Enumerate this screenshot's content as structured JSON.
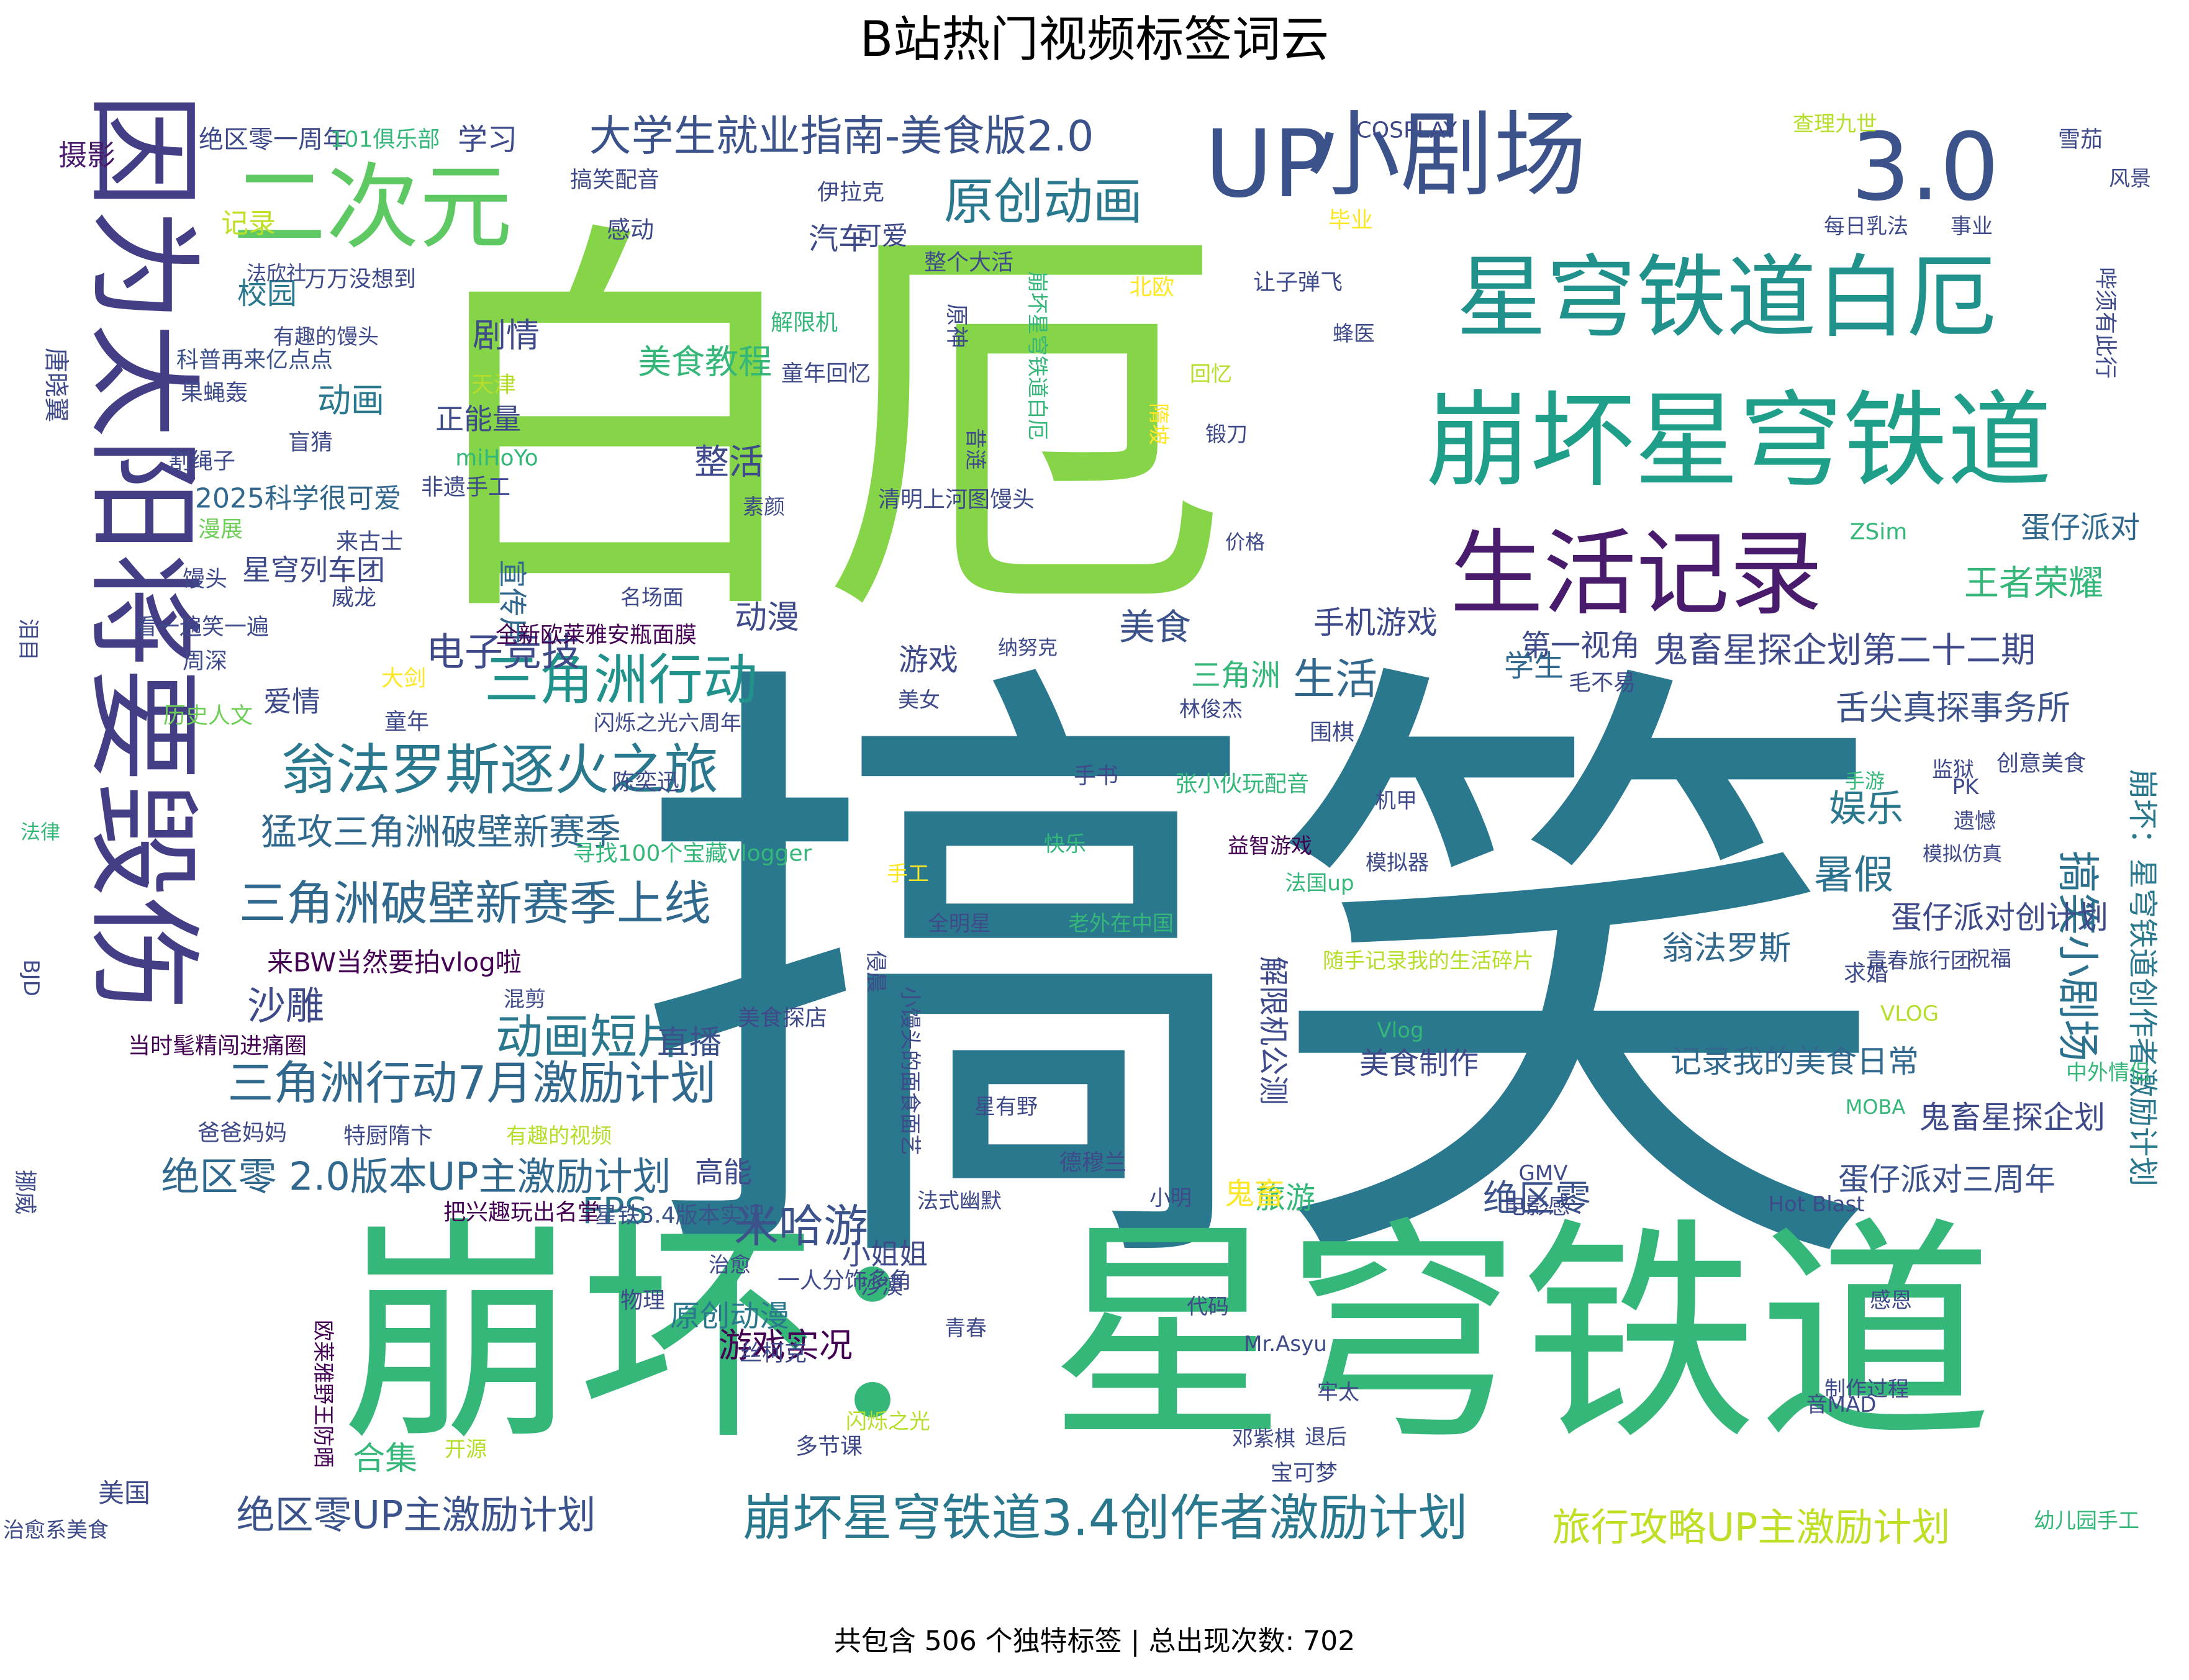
{
  "chart_data": {
    "type": "wordcloud",
    "title": "B站热门视频标签词云",
    "footer": "共包含 506 个独特标签 | 总出现次数: 702",
    "unique_tags": 506,
    "total_occurrences": 702,
    "colormap": "viridis",
    "words": [
      {
        "text": "搞笑",
        "color": "#2a788e"
      },
      {
        "text": "白厄",
        "color": "#86d549"
      },
      {
        "text": "崩坏：星穹铁道",
        "color": "#35b779"
      },
      {
        "text": "因为太阳将要毁伤",
        "color": "#433e85"
      },
      {
        "text": "崩坏星穹铁道",
        "color": "#1f9e89"
      },
      {
        "text": "星穹铁道白厄",
        "color": "#21918c"
      },
      {
        "text": "小剧场",
        "color": "#3b528b"
      },
      {
        "text": "UP",
        "color": "#3b528b"
      },
      {
        "text": "3.0",
        "color": "#3b528b"
      },
      {
        "text": "二次元",
        "color": "#5ec962"
      },
      {
        "text": "生活记录",
        "color": "#481b6d"
      },
      {
        "text": "三角洲行动",
        "color": "#21918c"
      },
      {
        "text": "翁法罗斯逐火之旅",
        "color": "#2a788e"
      },
      {
        "text": "三角洲破壁新赛季上线",
        "color": "#31688e"
      },
      {
        "text": "三角洲行动7月激励计划",
        "color": "#31688e"
      },
      {
        "text": "崩坏星穹铁道3.4创作者激励计划",
        "color": "#2a788e"
      },
      {
        "text": "大学生就业指南-美食版2.0",
        "color": "#3b528b"
      },
      {
        "text": "原创动画",
        "color": "#2a788e"
      },
      {
        "text": "绝区零 2.0版本UP主激励计划",
        "color": "#31688e"
      },
      {
        "text": "动画短片",
        "color": "#2a788e"
      },
      {
        "text": "猛攻三角洲破壁新赛季",
        "color": "#31688e"
      },
      {
        "text": "米哈游",
        "color": "#3b528b"
      },
      {
        "text": "电子竞技",
        "color": "#3e4a89"
      },
      {
        "text": "搞笑小剧场",
        "color": "#2c728e"
      },
      {
        "text": "旅行攻略UP主激励计划",
        "color": "#bddf26"
      },
      {
        "text": "绝区零UP主激励计划",
        "color": "#3b528b"
      },
      {
        "text": "鬼畜星探企划第二十二期",
        "color": "#3e4a89"
      },
      {
        "text": "舌尖真探事务所",
        "color": "#3b528b"
      },
      {
        "text": "王者荣耀",
        "color": "#35b779"
      },
      {
        "text": "蛋仔派对",
        "color": "#31688e"
      },
      {
        "text": "暑假",
        "color": "#2c728e"
      },
      {
        "text": "娱乐",
        "color": "#2a788e"
      },
      {
        "text": "蛋仔派对创计划",
        "color": "#3e4a89"
      },
      {
        "text": "翁法罗斯",
        "color": "#31688e"
      },
      {
        "text": "记录我的美食日常",
        "color": "#31688e"
      },
      {
        "text": "鬼畜星探企划",
        "color": "#3e4a89"
      },
      {
        "text": "蛋仔派对三周年",
        "color": "#3b528b"
      },
      {
        "text": "崩坏：星穹铁道创作者激励计划",
        "color": "#2a788e"
      },
      {
        "text": "绝区零",
        "color": "#3b528b"
      },
      {
        "text": "生活",
        "color": "#31688e"
      },
      {
        "text": "美食",
        "color": "#3b528b"
      },
      {
        "text": "动漫",
        "color": "#3e4a89"
      },
      {
        "text": "手机游戏",
        "color": "#3e4a89"
      },
      {
        "text": "游戏",
        "color": "#3e4a89"
      },
      {
        "text": "三角洲",
        "color": "#35b779"
      },
      {
        "text": "第一视角",
        "color": "#3e4a89"
      },
      {
        "text": "学生",
        "color": "#31688e"
      },
      {
        "text": "剧情",
        "color": "#3e4a89"
      },
      {
        "text": "动画",
        "color": "#2a788e"
      },
      {
        "text": "正能量",
        "color": "#3e4a89"
      },
      {
        "text": "整活",
        "color": "#3e4a89"
      },
      {
        "text": "美食教程",
        "color": "#35b779"
      },
      {
        "text": "学习",
        "color": "#3e4a89"
      },
      {
        "text": "汽车",
        "color": "#3e4a89"
      },
      {
        "text": "校园",
        "color": "#2a788e"
      },
      {
        "text": "沙雕",
        "color": "#3e4a89"
      },
      {
        "text": "直播",
        "color": "#3b528b"
      },
      {
        "text": "FPS",
        "color": "#2a788e"
      },
      {
        "text": "合集",
        "color": "#35b779"
      },
      {
        "text": "美国",
        "color": "#3e4a89"
      },
      {
        "text": "高能",
        "color": "#3e4a89"
      },
      {
        "text": "小姐姐",
        "color": "#3e4a89"
      },
      {
        "text": "游戏实况",
        "color": "#440154"
      },
      {
        "text": "原创动漫",
        "color": "#2a788e"
      },
      {
        "text": "旅游",
        "color": "#35b779"
      },
      {
        "text": "鬼畜",
        "color": "#fde725"
      },
      {
        "text": "美食制作",
        "color": "#3e4a89"
      },
      {
        "text": "解限机公测",
        "color": "#3e4a89"
      },
      {
        "text": "来BW当然要拍vlog啦",
        "color": "#440154"
      },
      {
        "text": "爱情",
        "color": "#3e4a89"
      },
      {
        "text": "宣传片",
        "color": "#31688e"
      },
      {
        "text": "星穹列车团",
        "color": "#3e4a89"
      },
      {
        "text": "2025科学很可爱",
        "color": "#31688e"
      },
      {
        "text": "摄影",
        "color": "#481b6d"
      },
      {
        "text": "绝区零一周年",
        "color": "#3e4a89"
      },
      {
        "text": "101俱乐部",
        "color": "#35b779"
      },
      {
        "text": "搞笑配音",
        "color": "#3e4a89"
      },
      {
        "text": "记录",
        "color": "#bddf26"
      },
      {
        "text": "可爱",
        "color": "#3e4a89"
      },
      {
        "text": "伊拉克",
        "color": "#3e4a89"
      },
      {
        "text": "感动",
        "color": "#3e4a89"
      },
      {
        "text": "法欣社",
        "color": "#3e4a89"
      },
      {
        "text": "万万没想到",
        "color": "#3e4a89"
      },
      {
        "text": "唐晓翼",
        "color": "#3e4a89"
      },
      {
        "text": "科普再来亿点点",
        "color": "#3b528b"
      },
      {
        "text": "有趣的馒头",
        "color": "#3e4a89"
      },
      {
        "text": "天津",
        "color": "#b5de2b"
      },
      {
        "text": "果蝇轰",
        "color": "#3e4a89"
      },
      {
        "text": "盲猜",
        "color": "#3e4a89"
      },
      {
        "text": "割绳子",
        "color": "#3e4a89"
      },
      {
        "text": "miHoYo",
        "color": "#35b779"
      },
      {
        "text": "非遗手工",
        "color": "#3e4a89"
      },
      {
        "text": "漫展",
        "color": "#6ece58"
      },
      {
        "text": "来古士",
        "color": "#3e4a89"
      },
      {
        "text": "馒头",
        "color": "#3e4a89"
      },
      {
        "text": "威龙",
        "color": "#3e4a89"
      },
      {
        "text": "看一遍笑一遍",
        "color": "#3e4a89"
      },
      {
        "text": "周深",
        "color": "#3e4a89"
      },
      {
        "text": "泪目",
        "color": "#3e4a89"
      },
      {
        "text": "大剑",
        "color": "#fde725"
      },
      {
        "text": "历史人文",
        "color": "#6ece58"
      },
      {
        "text": "童年",
        "color": "#3e4a89"
      },
      {
        "text": "闪烁之光六周年",
        "color": "#3e4a89"
      },
      {
        "text": "全新欧莱雅安瓶面膜",
        "color": "#440154"
      },
      {
        "text": "名场面",
        "color": "#3e4a89"
      },
      {
        "text": "法律",
        "color": "#35b779"
      },
      {
        "text": "BJD",
        "color": "#3e4a89"
      },
      {
        "text": "寻找100个宝藏vlogger",
        "color": "#35b779"
      },
      {
        "text": "陈奕迅",
        "color": "#3e4a89"
      },
      {
        "text": "混剪",
        "color": "#3e4a89"
      },
      {
        "text": "当时髦精闯进痛圈",
        "color": "#440154"
      },
      {
        "text": "爸爸妈妈",
        "color": "#3e4a89"
      },
      {
        "text": "特厨隋卞",
        "color": "#3e4a89"
      },
      {
        "text": "有趣的视频",
        "color": "#b5de2b"
      },
      {
        "text": "美食探店",
        "color": "#3e4a89"
      },
      {
        "text": "挪威",
        "color": "#3e4a89"
      },
      {
        "text": "把兴趣玩出名堂",
        "color": "#440154"
      },
      {
        "text": "星铁3.4版本实况",
        "color": "#3b528b"
      },
      {
        "text": "治愈",
        "color": "#3e4a89"
      },
      {
        "text": "一人分饰多角",
        "color": "#3e4a89"
      },
      {
        "text": "物理",
        "color": "#3e4a89"
      },
      {
        "text": "沙漠",
        "color": "#3e4a89"
      },
      {
        "text": "丝柯克",
        "color": "#3e4a89"
      },
      {
        "text": "欧莱雅野王防晒",
        "color": "#440154"
      },
      {
        "text": "开源",
        "color": "#b5de2b"
      },
      {
        "text": "多节课",
        "color": "#3e4a89"
      },
      {
        "text": "治愈系美食",
        "color": "#3e4a89"
      },
      {
        "text": "闪烁之光",
        "color": "#b5de2b"
      },
      {
        "text": "COSPLAY",
        "color": "#3e4a89"
      },
      {
        "text": "查理九世",
        "color": "#b5de2b"
      },
      {
        "text": "雪茄",
        "color": "#3e4a89"
      },
      {
        "text": "风景",
        "color": "#3e4a89"
      },
      {
        "text": "毕业",
        "color": "#fde725"
      },
      {
        "text": "每日乳法",
        "color": "#3e4a89"
      },
      {
        "text": "事业",
        "color": "#3e4a89"
      },
      {
        "text": "整个大活",
        "color": "#3e4a89"
      },
      {
        "text": "北欧",
        "color": "#fde725"
      },
      {
        "text": "让子弹飞",
        "color": "#3e4a89"
      },
      {
        "text": "哔须有此行",
        "color": "#3e4a89"
      },
      {
        "text": "解限机",
        "color": "#35b779"
      },
      {
        "text": "童年回忆",
        "color": "#3e4a89"
      },
      {
        "text": "原神",
        "color": "#3e4a89"
      },
      {
        "text": "崩坏星穹铁道白厄",
        "color": "#35b779"
      },
      {
        "text": "蜂医",
        "color": "#3e4a89"
      },
      {
        "text": "昔涟",
        "color": "#3e4a89"
      },
      {
        "text": "回忆",
        "color": "#b5de2b"
      },
      {
        "text": "隋坡",
        "color": "#fde725"
      },
      {
        "text": "锻刀",
        "color": "#3e4a89"
      },
      {
        "text": "素颜",
        "color": "#3e4a89"
      },
      {
        "text": "清明上河图馒头",
        "color": "#3e4a89"
      },
      {
        "text": "价格",
        "color": "#3e4a89"
      },
      {
        "text": "ZSim",
        "color": "#35b779"
      },
      {
        "text": "纳努克",
        "color": "#3e4a89"
      },
      {
        "text": "美女",
        "color": "#3e4a89"
      },
      {
        "text": "林俊杰",
        "color": "#3e4a89"
      },
      {
        "text": "围棋",
        "color": "#3e4a89"
      },
      {
        "text": "毛不易",
        "color": "#3e4a89"
      },
      {
        "text": "手游",
        "color": "#35b779"
      },
      {
        "text": "创意美食",
        "color": "#3e4a89"
      },
      {
        "text": "手书",
        "color": "#3e4a89"
      },
      {
        "text": "张小伙玩配音",
        "color": "#35b779"
      },
      {
        "text": "监狱",
        "color": "#3e4a89"
      },
      {
        "text": "PK",
        "color": "#3e4a89"
      },
      {
        "text": "机甲",
        "color": "#3e4a89"
      },
      {
        "text": "遗憾",
        "color": "#3e4a89"
      },
      {
        "text": "快乐",
        "color": "#35b779"
      },
      {
        "text": "益智游戏",
        "color": "#440154"
      },
      {
        "text": "模拟器",
        "color": "#3e4a89"
      },
      {
        "text": "模拟仿真",
        "color": "#3e4a89"
      },
      {
        "text": "手工",
        "color": "#fde725"
      },
      {
        "text": "法国up",
        "color": "#35b779"
      },
      {
        "text": "全明星",
        "color": "#3e4a89"
      },
      {
        "text": "老外在中国",
        "color": "#35b779"
      },
      {
        "text": "随手记录我的生活碎片",
        "color": "#b5de2b"
      },
      {
        "text": "青春旅行团",
        "color": "#3e4a89"
      },
      {
        "text": "祝福",
        "color": "#3e4a89"
      },
      {
        "text": "侵晨",
        "color": "#3e4a89"
      },
      {
        "text": "求婚",
        "color": "#3e4a89"
      },
      {
        "text": "Vlog",
        "color": "#35b779"
      },
      {
        "text": "VLOG",
        "color": "#b5de2b"
      },
      {
        "text": "小馒头的面食面艺",
        "color": "#3e4a89"
      },
      {
        "text": "中外情侣",
        "color": "#35b779"
      },
      {
        "text": "MOBA",
        "color": "#35b779"
      },
      {
        "text": "星有野",
        "color": "#3e4a89"
      },
      {
        "text": "德穆兰",
        "color": "#3e4a89"
      },
      {
        "text": "GMV",
        "color": "#3e4a89"
      },
      {
        "text": "电影感",
        "color": "#3e4a89"
      },
      {
        "text": "法式幽默",
        "color": "#3e4a89"
      },
      {
        "text": "小明",
        "color": "#3e4a89"
      },
      {
        "text": "Hot Blast",
        "color": "#3e4a89"
      },
      {
        "text": "代码",
        "color": "#3e4a89"
      },
      {
        "text": "青春",
        "color": "#3e4a89"
      },
      {
        "text": "感恩",
        "color": "#3e4a89"
      },
      {
        "text": "Mr.Asyu",
        "color": "#3e4a89"
      },
      {
        "text": "制作过程",
        "color": "#3e4a89"
      },
      {
        "text": "牢太",
        "color": "#3e4a89"
      },
      {
        "text": "音MAD",
        "color": "#3e4a89"
      },
      {
        "text": "邓紫棋",
        "color": "#3e4a89"
      },
      {
        "text": "退后",
        "color": "#3e4a89"
      },
      {
        "text": "宝可梦",
        "color": "#3e4a89"
      },
      {
        "text": "幼儿园手工",
        "color": "#35b779"
      },
      {
        "text": "押韵",
        "color": "#3e4a89"
      }
    ]
  }
}
